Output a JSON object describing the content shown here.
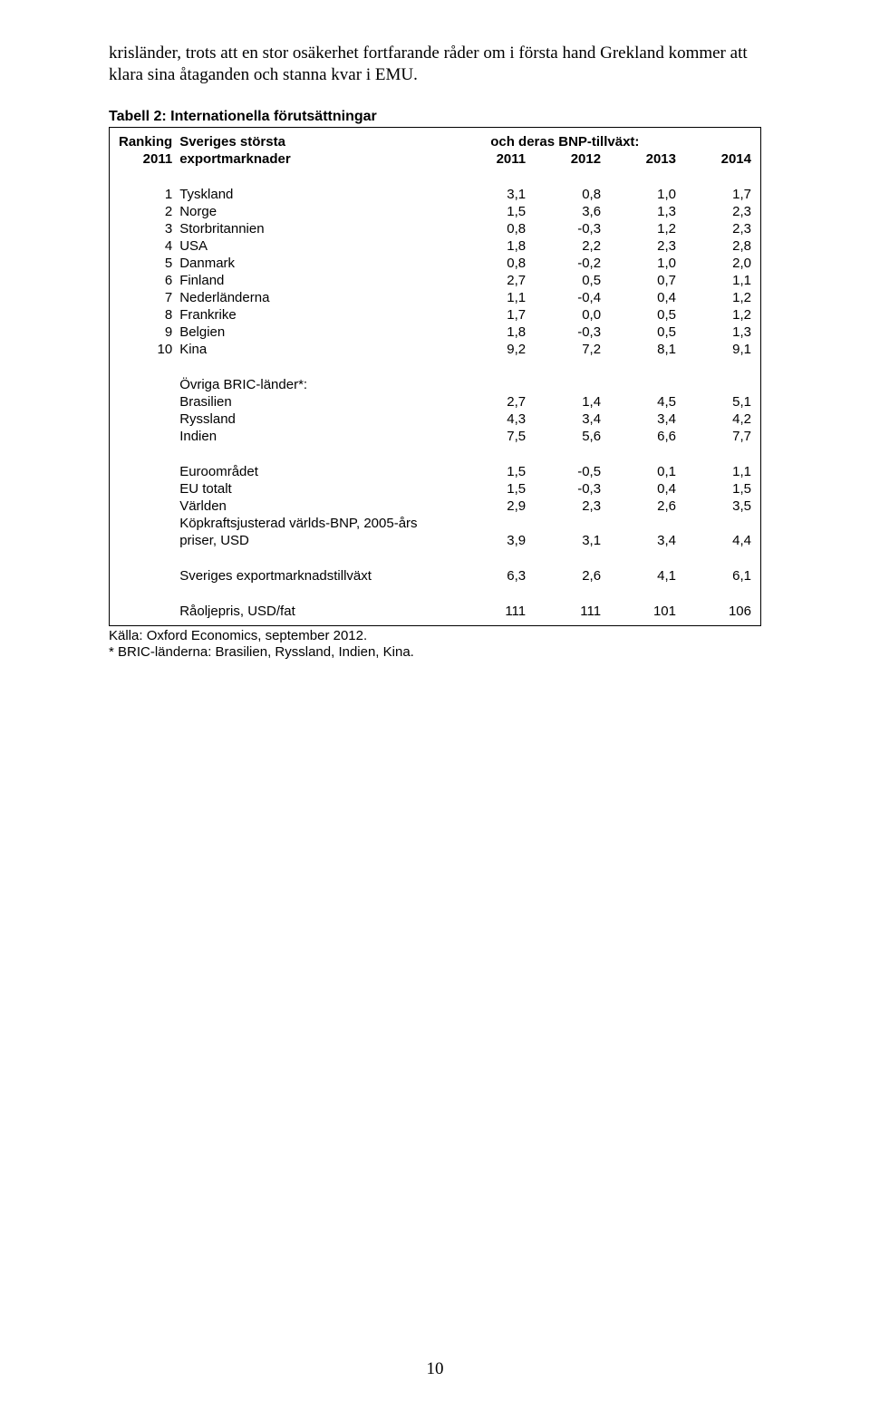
{
  "intro": "krisländer, trots att en stor osäkerhet fortfarande råder om i första hand Grekland kommer att klara sina åtaganden och stanna kvar i EMU.",
  "table_title": "Tabell 2: Internationella förutsättningar",
  "header": {
    "rank_line1": "Ranking",
    "rank_line2": "2011",
    "label_line1": "Sveriges största",
    "label_line2": "exportmarknader",
    "right_label": "och deras BNP-tillväxt:",
    "years": [
      "2011",
      "2012",
      "2013",
      "2014"
    ]
  },
  "countries": [
    {
      "rank": "1",
      "name": "Tyskland",
      "vals": [
        "3,1",
        "0,8",
        "1,0",
        "1,7"
      ]
    },
    {
      "rank": "2",
      "name": "Norge",
      "vals": [
        "1,5",
        "3,6",
        "1,3",
        "2,3"
      ]
    },
    {
      "rank": "3",
      "name": "Storbritannien",
      "vals": [
        "0,8",
        "-0,3",
        "1,2",
        "2,3"
      ]
    },
    {
      "rank": "4",
      "name": "USA",
      "vals": [
        "1,8",
        "2,2",
        "2,3",
        "2,8"
      ]
    },
    {
      "rank": "5",
      "name": "Danmark",
      "vals": [
        "0,8",
        "-0,2",
        "1,0",
        "2,0"
      ]
    },
    {
      "rank": "6",
      "name": "Finland",
      "vals": [
        "2,7",
        "0,5",
        "0,7",
        "1,1"
      ]
    },
    {
      "rank": "7",
      "name": "Nederländerna",
      "vals": [
        "1,1",
        "-0,4",
        "0,4",
        "1,2"
      ]
    },
    {
      "rank": "8",
      "name": "Frankrike",
      "vals": [
        "1,7",
        "0,0",
        "0,5",
        "1,2"
      ]
    },
    {
      "rank": "9",
      "name": "Belgien",
      "vals": [
        "1,8",
        "-0,3",
        "0,5",
        "1,3"
      ]
    },
    {
      "rank": "10",
      "name": "Kina",
      "vals": [
        "9,2",
        "7,2",
        "8,1",
        "9,1"
      ]
    }
  ],
  "bric_header": "Övriga BRIC-länder*:",
  "bric": [
    {
      "name": "Brasilien",
      "vals": [
        "2,7",
        "1,4",
        "4,5",
        "5,1"
      ]
    },
    {
      "name": "Ryssland",
      "vals": [
        "4,3",
        "3,4",
        "3,4",
        "4,2"
      ]
    },
    {
      "name": "Indien",
      "vals": [
        "7,5",
        "5,6",
        "6,6",
        "7,7"
      ]
    }
  ],
  "aggregates": [
    {
      "name": "Euroområdet",
      "vals": [
        "1,5",
        "-0,5",
        "0,1",
        "1,1"
      ]
    },
    {
      "name": "EU totalt",
      "vals": [
        "1,5",
        "-0,3",
        "0,4",
        "1,5"
      ]
    },
    {
      "name": "Världen",
      "vals": [
        "2,9",
        "2,3",
        "2,6",
        "3,5"
      ]
    }
  ],
  "ppp": {
    "line1": "Köpkraftsjusterad världs-BNP, 2005-års",
    "line2": "priser, USD",
    "vals": [
      "3,9",
      "3,1",
      "3,4",
      "4,4"
    ]
  },
  "export_growth": {
    "name": "Sveriges exportmarknadstillväxt",
    "vals": [
      "6,3",
      "2,6",
      "4,1",
      "6,1"
    ]
  },
  "oil": {
    "name": "Råoljepris, USD/fat",
    "vals": [
      "111",
      "111",
      "101",
      "106"
    ]
  },
  "footnotes": [
    "Källa: Oxford Economics, september 2012.",
    "* BRIC-länderna: Brasilien, Ryssland, Indien, Kina."
  ],
  "page_number": "10"
}
